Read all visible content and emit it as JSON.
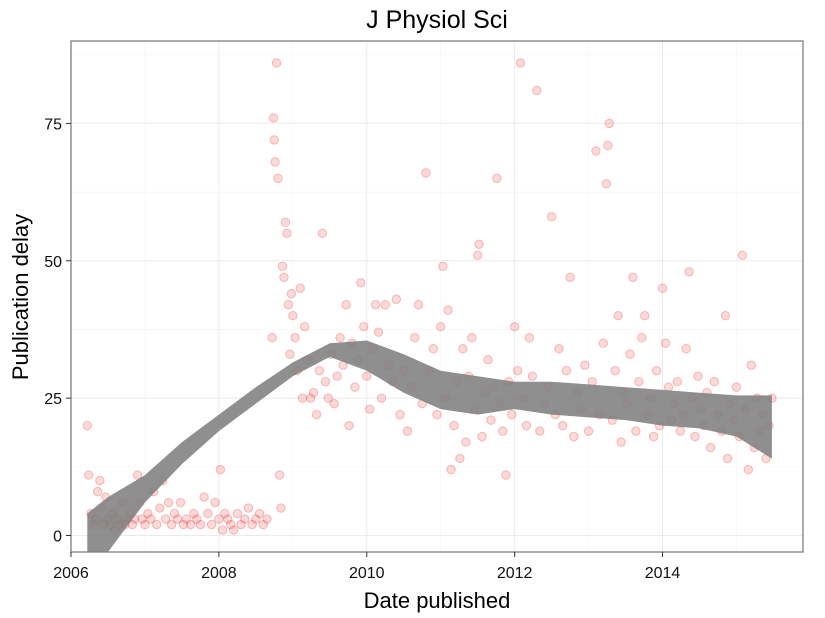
{
  "chart_data": {
    "type": "scatter",
    "title": "J Physiol Sci",
    "xlabel": "Date published",
    "ylabel": "Publication delay",
    "xlim": [
      2006.0,
      2015.9
    ],
    "ylim": [
      -3,
      90
    ],
    "x_ticks": [
      2006,
      2008,
      2010,
      2012,
      2014
    ],
    "x_tick_labels": [
      "2006",
      "2008",
      "2010",
      "2012",
      "2014"
    ],
    "y_ticks": [
      0,
      25,
      50,
      75
    ],
    "y_tick_labels": [
      "0",
      "25",
      "50",
      "75"
    ],
    "grid": true,
    "legend": "none",
    "colors": {
      "points": "#ee2222",
      "band": "#808080",
      "panel_border": "#7f7f7f",
      "grid_major": "#ebebeb",
      "grid_minor": "#f5f5f5"
    },
    "series": [
      {
        "points": [
          [
            2006.22,
            20
          ],
          [
            2006.24,
            11
          ],
          [
            2006.27,
            4
          ],
          [
            2006.3,
            2
          ],
          [
            2006.33,
            3
          ],
          [
            2006.36,
            8
          ],
          [
            2006.39,
            10
          ],
          [
            2006.41,
            5
          ],
          [
            2006.44,
            2
          ],
          [
            2006.47,
            7
          ],
          [
            2006.5,
            3
          ],
          [
            2006.53,
            2
          ],
          [
            2006.56,
            4
          ],
          [
            2006.6,
            1
          ],
          [
            2006.63,
            3
          ],
          [
            2006.66,
            2
          ],
          [
            2006.7,
            6
          ],
          [
            2006.73,
            2
          ],
          [
            2006.76,
            3
          ],
          [
            2006.8,
            4
          ],
          [
            2006.83,
            2
          ],
          [
            2006.86,
            3
          ],
          [
            2006.9,
            11
          ],
          [
            2006.93,
            6
          ],
          [
            2006.96,
            3
          ],
          [
            2007.0,
            2
          ],
          [
            2007.04,
            4
          ],
          [
            2007.08,
            3
          ],
          [
            2007.12,
            8
          ],
          [
            2007.16,
            2
          ],
          [
            2007.2,
            5
          ],
          [
            2007.24,
            10
          ],
          [
            2007.28,
            3
          ],
          [
            2007.32,
            6
          ],
          [
            2007.36,
            2
          ],
          [
            2007.4,
            4
          ],
          [
            2007.44,
            3
          ],
          [
            2007.48,
            6
          ],
          [
            2007.52,
            2
          ],
          [
            2007.56,
            3
          ],
          [
            2007.62,
            2
          ],
          [
            2007.66,
            4
          ],
          [
            2007.7,
            3
          ],
          [
            2007.75,
            2
          ],
          [
            2007.8,
            7
          ],
          [
            2007.85,
            4
          ],
          [
            2007.9,
            2
          ],
          [
            2007.95,
            6
          ],
          [
            2008.0,
            3
          ],
          [
            2008.02,
            12
          ],
          [
            2008.05,
            1
          ],
          [
            2008.08,
            4
          ],
          [
            2008.12,
            3
          ],
          [
            2008.16,
            2
          ],
          [
            2008.2,
            1
          ],
          [
            2008.25,
            4
          ],
          [
            2008.3,
            2
          ],
          [
            2008.35,
            3
          ],
          [
            2008.4,
            5
          ],
          [
            2008.45,
            2
          ],
          [
            2008.5,
            3
          ],
          [
            2008.55,
            4
          ],
          [
            2008.6,
            2
          ],
          [
            2008.65,
            3
          ],
          [
            2008.72,
            36
          ],
          [
            2008.74,
            76
          ],
          [
            2008.75,
            72
          ],
          [
            2008.76,
            68
          ],
          [
            2008.78,
            86
          ],
          [
            2008.8,
            65
          ],
          [
            2008.82,
            11
          ],
          [
            2008.84,
            5
          ],
          [
            2008.86,
            49
          ],
          [
            2008.88,
            47
          ],
          [
            2008.9,
            57
          ],
          [
            2008.92,
            55
          ],
          [
            2008.94,
            42
          ],
          [
            2008.96,
            33
          ],
          [
            2008.98,
            44
          ],
          [
            2009.0,
            40
          ],
          [
            2009.03,
            36
          ],
          [
            2009.06,
            30
          ],
          [
            2009.1,
            45
          ],
          [
            2009.13,
            25
          ],
          [
            2009.16,
            38
          ],
          [
            2009.2,
            32
          ],
          [
            2009.24,
            25
          ],
          [
            2009.28,
            26
          ],
          [
            2009.32,
            22
          ],
          [
            2009.36,
            30
          ],
          [
            2009.4,
            55
          ],
          [
            2009.44,
            28
          ],
          [
            2009.48,
            25
          ],
          [
            2009.52,
            33
          ],
          [
            2009.56,
            24
          ],
          [
            2009.6,
            29
          ],
          [
            2009.64,
            36
          ],
          [
            2009.68,
            31
          ],
          [
            2009.72,
            42
          ],
          [
            2009.76,
            20
          ],
          [
            2009.8,
            35
          ],
          [
            2009.84,
            27
          ],
          [
            2009.88,
            32
          ],
          [
            2009.92,
            46
          ],
          [
            2009.96,
            38
          ],
          [
            2010.0,
            29
          ],
          [
            2010.04,
            23
          ],
          [
            2010.08,
            34
          ],
          [
            2010.12,
            42
          ],
          [
            2010.16,
            37
          ],
          [
            2010.2,
            25
          ],
          [
            2010.25,
            42
          ],
          [
            2010.3,
            31
          ],
          [
            2010.35,
            28
          ],
          [
            2010.4,
            43
          ],
          [
            2010.45,
            22
          ],
          [
            2010.5,
            30
          ],
          [
            2010.55,
            19
          ],
          [
            2010.6,
            27
          ],
          [
            2010.65,
            36
          ],
          [
            2010.7,
            42
          ],
          [
            2010.75,
            24
          ],
          [
            2010.8,
            66
          ],
          [
            2010.85,
            30
          ],
          [
            2010.9,
            34
          ],
          [
            2010.95,
            22
          ],
          [
            2011.0,
            38
          ],
          [
            2011.03,
            49
          ],
          [
            2011.06,
            25
          ],
          [
            2011.1,
            41
          ],
          [
            2011.14,
            12
          ],
          [
            2011.18,
            20
          ],
          [
            2011.22,
            28
          ],
          [
            2011.26,
            14
          ],
          [
            2011.3,
            34
          ],
          [
            2011.34,
            17
          ],
          [
            2011.38,
            29
          ],
          [
            2011.42,
            36
          ],
          [
            2011.46,
            23
          ],
          [
            2011.5,
            51
          ],
          [
            2011.52,
            53
          ],
          [
            2011.56,
            18
          ],
          [
            2011.6,
            26
          ],
          [
            2011.64,
            32
          ],
          [
            2011.68,
            21
          ],
          [
            2011.72,
            27
          ],
          [
            2011.76,
            65
          ],
          [
            2011.8,
            24
          ],
          [
            2011.84,
            19
          ],
          [
            2011.88,
            11
          ],
          [
            2011.92,
            28
          ],
          [
            2011.96,
            22
          ],
          [
            2012.0,
            38
          ],
          [
            2012.04,
            30
          ],
          [
            2012.08,
            86
          ],
          [
            2012.12,
            25
          ],
          [
            2012.16,
            20
          ],
          [
            2012.2,
            36
          ],
          [
            2012.24,
            29
          ],
          [
            2012.3,
            81
          ],
          [
            2012.34,
            19
          ],
          [
            2012.4,
            24
          ],
          [
            2012.45,
            27
          ],
          [
            2012.5,
            58
          ],
          [
            2012.55,
            22
          ],
          [
            2012.6,
            34
          ],
          [
            2012.65,
            20
          ],
          [
            2012.7,
            30
          ],
          [
            2012.75,
            47
          ],
          [
            2012.8,
            18
          ],
          [
            2012.85,
            26
          ],
          [
            2012.9,
            23
          ],
          [
            2012.95,
            31
          ],
          [
            2013.0,
            19
          ],
          [
            2013.05,
            28
          ],
          [
            2013.1,
            70
          ],
          [
            2013.15,
            22
          ],
          [
            2013.2,
            35
          ],
          [
            2013.24,
            64
          ],
          [
            2013.26,
            71
          ],
          [
            2013.28,
            75
          ],
          [
            2013.32,
            21
          ],
          [
            2013.36,
            30
          ],
          [
            2013.4,
            40
          ],
          [
            2013.44,
            17
          ],
          [
            2013.48,
            26
          ],
          [
            2013.52,
            24
          ],
          [
            2013.56,
            33
          ],
          [
            2013.6,
            47
          ],
          [
            2013.64,
            19
          ],
          [
            2013.68,
            28
          ],
          [
            2013.72,
            36
          ],
          [
            2013.76,
            40
          ],
          [
            2013.8,
            22
          ],
          [
            2013.84,
            25
          ],
          [
            2013.88,
            18
          ],
          [
            2013.92,
            30
          ],
          [
            2013.96,
            20
          ],
          [
            2014.0,
            45
          ],
          [
            2014.04,
            35
          ],
          [
            2014.08,
            27
          ],
          [
            2014.12,
            21
          ],
          [
            2014.16,
            24
          ],
          [
            2014.2,
            28
          ],
          [
            2014.24,
            19
          ],
          [
            2014.28,
            22
          ],
          [
            2014.32,
            34
          ],
          [
            2014.36,
            48
          ],
          [
            2014.4,
            25
          ],
          [
            2014.44,
            18
          ],
          [
            2014.48,
            29
          ],
          [
            2014.52,
            23
          ],
          [
            2014.56,
            20
          ],
          [
            2014.6,
            26
          ],
          [
            2014.65,
            16
          ],
          [
            2014.7,
            28
          ],
          [
            2014.75,
            22
          ],
          [
            2014.8,
            19
          ],
          [
            2014.85,
            40
          ],
          [
            2014.88,
            14
          ],
          [
            2014.92,
            24
          ],
          [
            2014.96,
            21
          ],
          [
            2015.0,
            27
          ],
          [
            2015.04,
            18
          ],
          [
            2015.08,
            51
          ],
          [
            2015.12,
            23
          ],
          [
            2015.16,
            12
          ],
          [
            2015.2,
            31
          ],
          [
            2015.24,
            16
          ],
          [
            2015.28,
            25
          ],
          [
            2015.32,
            19
          ],
          [
            2015.36,
            22
          ],
          [
            2015.4,
            14
          ],
          [
            2015.44,
            20
          ],
          [
            2015.48,
            25
          ]
        ]
      }
    ],
    "smooth": {
      "x": [
        2006.22,
        2006.5,
        2007.0,
        2007.5,
        2008.0,
        2008.5,
        2009.0,
        2009.5,
        2010.0,
        2010.5,
        2011.0,
        2011.5,
        2012.0,
        2012.5,
        2013.0,
        2013.5,
        2014.0,
        2014.5,
        2015.0,
        2015.48
      ],
      "lower": [
        -5,
        -3,
        6,
        13,
        19,
        24,
        29,
        32.5,
        30,
        26,
        23,
        22,
        23,
        22,
        21.5,
        21,
        20,
        19.5,
        18,
        14
      ],
      "upper": [
        4,
        7,
        11,
        17,
        22,
        27,
        31.5,
        35,
        35.5,
        33,
        30,
        29,
        28,
        28,
        27.5,
        27,
        26.5,
        26,
        25.5,
        25.5
      ]
    }
  }
}
